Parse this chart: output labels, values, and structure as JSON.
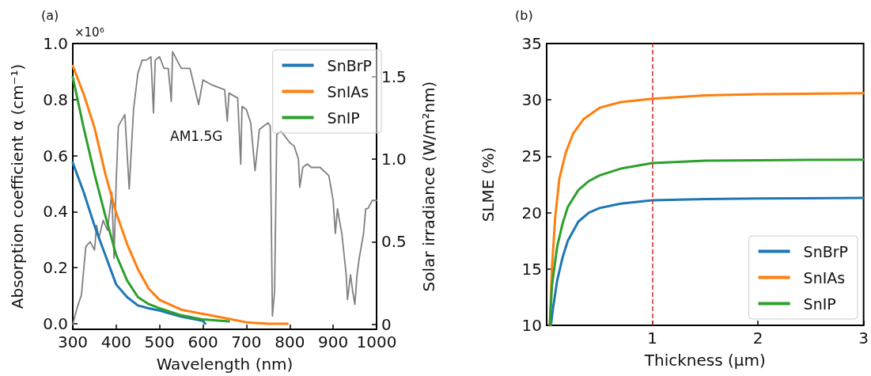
{
  "chart_data": [
    {
      "type": "line",
      "title": "(a)",
      "xlabel": "Wavelength (nm)",
      "ylabel": "Absorption coefficient α (cm⁻¹)",
      "y2label": "Solar irradiance (W/m²nm)",
      "xlim": [
        300,
        1000
      ],
      "xticks": [
        300,
        400,
        500,
        600,
        700,
        800,
        900,
        1000
      ],
      "ylim": [
        -0.02,
        1.0
      ],
      "yticks": [
        {
          "value": 0,
          "label": "0.0"
        },
        {
          "value": 0.2,
          "label": "0.2"
        },
        {
          "value": 0.4,
          "label": "0.4"
        },
        {
          "value": 0.6,
          "label": "0.6"
        },
        {
          "value": 0.8,
          "label": "0.8"
        },
        {
          "value": 1.0,
          "label": "1.0"
        }
      ],
      "y2lim": [
        -0.03,
        1.7
      ],
      "y2ticks": [
        0,
        0.5,
        {
          "value": 1,
          "label": "1.0"
        },
        1.5
      ],
      "grid": false,
      "legend": "top right",
      "marker": "none",
      "line_style": "solid",
      "annotations": [
        "×10⁶",
        "AM1.5G"
      ],
      "series": [
        {
          "name": "SnBrP",
          "color": "#1f77b4",
          "x": [
            300,
            325,
            350,
            375,
            400,
            425,
            450,
            475,
            500,
            550,
            600,
            605
          ],
          "values": [
            0.575,
            0.47,
            0.35,
            0.245,
            0.14,
            0.095,
            0.065,
            0.055,
            0.047,
            0.025,
            0.01,
            0.0
          ]
        },
        {
          "name": "SnIAs",
          "color": "#ff7f0e",
          "x": [
            300,
            325,
            350,
            375,
            400,
            425,
            450,
            475,
            500,
            550,
            600,
            650,
            700,
            750,
            795
          ],
          "values": [
            0.92,
            0.82,
            0.7,
            0.535,
            0.395,
            0.285,
            0.195,
            0.125,
            0.085,
            0.05,
            0.035,
            0.02,
            0.005,
            0.0,
            0.0
          ]
        },
        {
          "name": "SnIP",
          "color": "#2ca02c",
          "x": [
            300,
            325,
            350,
            375,
            400,
            425,
            450,
            475,
            500,
            550,
            600,
            660
          ],
          "values": [
            0.88,
            0.7,
            0.535,
            0.385,
            0.245,
            0.155,
            0.095,
            0.07,
            0.055,
            0.03,
            0.015,
            0.008
          ]
        },
        {
          "color": "#808080",
          "axis": "y2",
          "x": [
            300,
            310,
            320,
            330,
            340,
            350,
            355,
            360,
            370,
            380,
            390,
            395,
            400,
            405,
            420,
            430,
            440,
            450,
            460,
            470,
            480,
            486,
            490,
            500,
            510,
            520,
            527,
            530,
            550,
            570,
            590,
            600,
            620,
            650,
            656,
            660,
            680,
            687,
            690,
            700,
            710,
            720,
            730,
            740,
            750,
            755,
            760,
            765,
            770,
            780,
            800,
            810,
            820,
            823,
            830,
            840,
            850,
            870,
            890,
            900,
            905,
            910,
            915,
            920,
            930,
            933,
            940,
            945,
            950,
            955,
            960,
            970,
            975,
            980,
            990,
            1000
          ],
          "values": [
            0,
            0.1,
            0.18,
            0.47,
            0.5,
            0.45,
            0.6,
            0.52,
            0.63,
            0.57,
            0.8,
            0.4,
            0.86,
            1.2,
            1.27,
            0.82,
            1.3,
            1.52,
            1.6,
            1.6,
            1.62,
            1.28,
            1.6,
            1.62,
            1.55,
            1.55,
            1.35,
            1.65,
            1.55,
            1.55,
            1.33,
            1.48,
            1.45,
            1.42,
            1.23,
            1.4,
            1.37,
            0.97,
            1.32,
            1.3,
            1.22,
            0.93,
            1.18,
            1.2,
            1.22,
            1.2,
            0.05,
            0.2,
            1.15,
            1.17,
            1.1,
            1.08,
            1.0,
            0.83,
            0.95,
            0.97,
            0.95,
            0.95,
            0.9,
            0.75,
            0.55,
            0.7,
            0.62,
            0.55,
            0.3,
            0.15,
            0.3,
            0.2,
            0.12,
            0.3,
            0.4,
            0.55,
            0.7,
            0.7,
            0.75,
            0.75
          ]
        }
      ]
    },
    {
      "type": "line",
      "title": "(b)",
      "xlabel": "Thickness (μm)",
      "ylabel": "SLME (%)",
      "xlim": [
        0,
        3
      ],
      "xticks": [
        1,
        2,
        3
      ],
      "ylim": [
        10,
        35
      ],
      "yticks": [
        10,
        15,
        20,
        25,
        30,
        35
      ],
      "grid": false,
      "legend": "bottom right",
      "marker": "none",
      "line_style": "solid",
      "ref_lines": [
        {
          "axis": "x",
          "value": 1,
          "color": "#d62728",
          "line_style": "dashed"
        }
      ],
      "series": [
        {
          "name": "SnBrP",
          "color": "#1f77b4",
          "x": [
            0.04,
            0.06,
            0.1,
            0.15,
            0.2,
            0.3,
            0.4,
            0.5,
            0.7,
            1,
            1.5,
            2,
            3
          ],
          "values": [
            10,
            11.5,
            14,
            16,
            17.5,
            19.2,
            20,
            20.4,
            20.8,
            21.1,
            21.2,
            21.25,
            21.3
          ]
        },
        {
          "name": "SnIAs",
          "color": "#ff7f0e",
          "x": [
            0.03,
            0.05,
            0.08,
            0.12,
            0.18,
            0.25,
            0.35,
            0.5,
            0.7,
            1,
            1.5,
            2,
            3
          ],
          "values": [
            10,
            15,
            19.5,
            23,
            25.3,
            27,
            28.3,
            29.3,
            29.8,
            30.1,
            30.4,
            30.5,
            30.6
          ]
        },
        {
          "name": "SnIP",
          "color": "#2ca02c",
          "x": [
            0.03,
            0.05,
            0.1,
            0.15,
            0.2,
            0.3,
            0.4,
            0.5,
            0.7,
            1,
            1.5,
            2,
            3
          ],
          "values": [
            10,
            13.5,
            17,
            19,
            20.5,
            22,
            22.8,
            23.3,
            23.9,
            24.4,
            24.6,
            24.65,
            24.7
          ]
        }
      ]
    }
  ]
}
